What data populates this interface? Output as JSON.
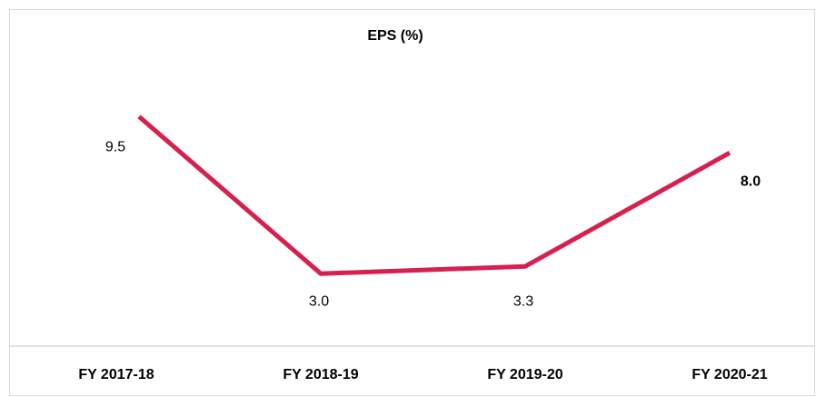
{
  "chart_data": {
    "type": "line",
    "title": "EPS (%)",
    "categories": [
      "FY 2017-18",
      "FY 2018-19",
      "FY 2019-20",
      "FY 2020-21"
    ],
    "series": [
      {
        "name": "EPS",
        "color": "#d6204f",
        "values": [
          9.5,
          3.0,
          3.3,
          8.0
        ],
        "value_labels": [
          "9.5",
          "3.0",
          "3.3",
          "8.0"
        ]
      }
    ]
  }
}
